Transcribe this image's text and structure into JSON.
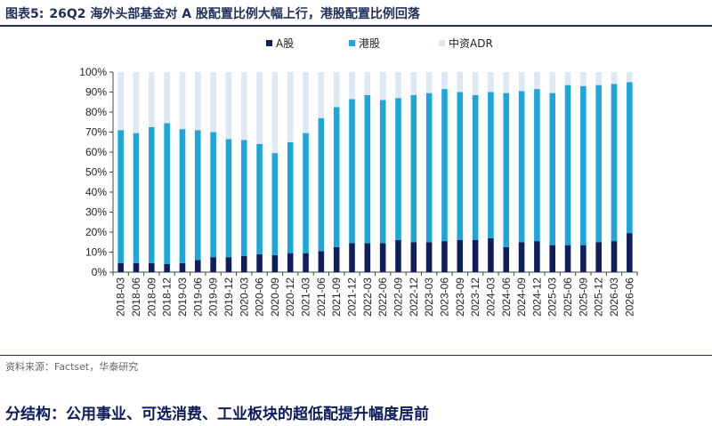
{
  "figure": {
    "label": "图表5:",
    "title": "26Q2 海外头部基金对 A 股配置比例大幅上行，港股配置比例回落"
  },
  "legend": [
    {
      "name": "A股",
      "color": "#0d1f5c"
    },
    {
      "name": "港股",
      "color": "#1fa5de"
    },
    {
      "name": "中资ADR",
      "color": "#dde7f5"
    }
  ],
  "source": "资料来源：Factset，华泰研究",
  "bottom_text": "分结构：公用事业、可选消费、工业板块的超低配提升幅度居前",
  "chart_data": {
    "type": "bar",
    "stacked": true,
    "categories": [
      "2018-03",
      "2018-06",
      "2018-09",
      "2018-12",
      "2019-03",
      "2019-06",
      "2019-09",
      "2019-12",
      "2020-03",
      "2020-06",
      "2020-09",
      "2020-12",
      "2021-03",
      "2021-06",
      "2021-09",
      "2021-12",
      "2022-03",
      "2022-06",
      "2022-09",
      "2022-12",
      "2023-03",
      "2023-06",
      "2023-09",
      "2023-12",
      "2024-03",
      "2024-06",
      "2024-09",
      "2024-12",
      "2025-03",
      "2025-06",
      "2025-09",
      "2025-12",
      "2026-03",
      "2026-06"
    ],
    "series": [
      {
        "name": "A股",
        "color": "#0d1f5c",
        "values": [
          4.5,
          4.5,
          4.5,
          4,
          4.5,
          6,
          7.5,
          7.5,
          8,
          9,
          8.5,
          9.5,
          9.5,
          10.5,
          12.5,
          14.5,
          14.5,
          14.5,
          16,
          15,
          15,
          15.5,
          16,
          16,
          17,
          12.5,
          15,
          15.5,
          13.5,
          13.5,
          13.5,
          15,
          15.5,
          19.5
        ]
      },
      {
        "name": "港股",
        "color": "#1fa5de",
        "values": [
          66.5,
          65,
          68,
          70.5,
          67,
          65,
          62.5,
          59,
          58,
          55,
          51,
          55.5,
          60,
          66.5,
          70,
          72,
          74,
          71.5,
          71,
          73.5,
          74.5,
          76,
          74,
          72.5,
          73,
          77,
          75.5,
          76,
          76,
          80,
          79.5,
          78.5,
          78.5,
          75.5
        ]
      },
      {
        "name": "中资ADR",
        "color": "#dde7f5",
        "values": [
          29,
          30.5,
          27.5,
          25.5,
          28.5,
          29,
          30,
          33.5,
          34,
          36,
          40.5,
          35,
          30.5,
          23,
          17.5,
          13.5,
          11.5,
          14,
          13,
          11.5,
          10.5,
          8.5,
          10,
          11.5,
          10,
          10.5,
          9.5,
          8.5,
          10.5,
          6.5,
          7,
          6.5,
          6,
          5
        ]
      }
    ],
    "yticks": [
      "0%",
      "10%",
      "20%",
      "30%",
      "40%",
      "50%",
      "60%",
      "70%",
      "80%",
      "90%",
      "100%"
    ],
    "ylim": [
      0,
      100
    ],
    "grid": false,
    "legend_position": "top"
  }
}
